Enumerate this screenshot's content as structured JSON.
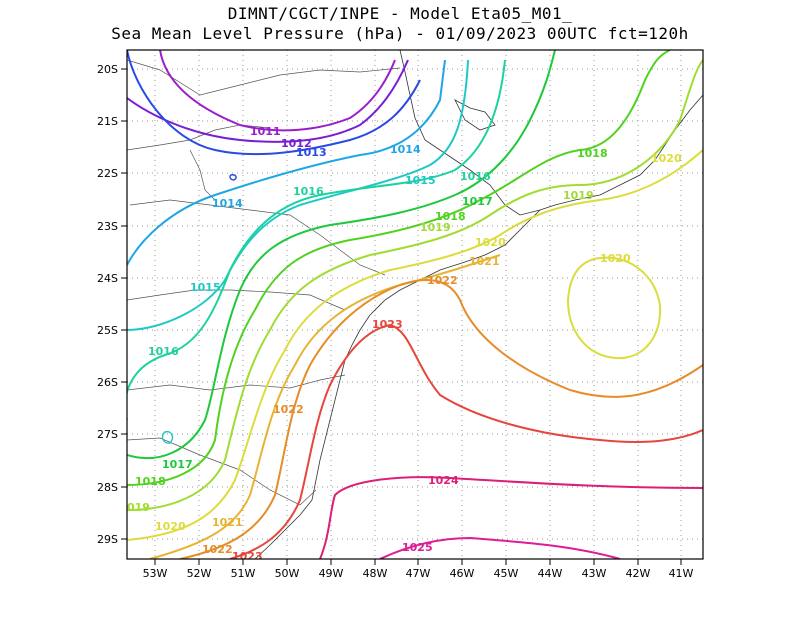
{
  "header": {
    "line1": "DIMNT/CGCT/INPE -  Model Eta05_M01_",
    "line2": "Sea Mean Level Pressure (hPa) - 01/09/2023 00UTC fct=120h"
  },
  "axes": {
    "lat_labels": [
      "20S",
      "21S",
      "22S",
      "23S",
      "24S",
      "25S",
      "26S",
      "27S",
      "28S",
      "29S"
    ],
    "lon_labels": [
      "53W",
      "52W",
      "51W",
      "50W",
      "49W",
      "48W",
      "47W",
      "46W",
      "45W",
      "44W",
      "43W",
      "42W",
      "41W"
    ]
  },
  "isobars": [
    {
      "value": "1011",
      "color": "#9b1ec8"
    },
    {
      "value": "1012",
      "color": "#7a1ed6"
    },
    {
      "value": "1013",
      "color": "#2a4ae6"
    },
    {
      "value": "1014",
      "color": "#1ea6e6"
    },
    {
      "value": "1015",
      "color": "#1ec8c8"
    },
    {
      "value": "1016",
      "color": "#1ed2a0"
    },
    {
      "value": "1017",
      "color": "#1ec83c"
    },
    {
      "value": "1018",
      "color": "#50d21e"
    },
    {
      "value": "1019",
      "color": "#a0dc32"
    },
    {
      "value": "1020",
      "color": "#dcdc3c"
    },
    {
      "value": "1021",
      "color": "#e6b432"
    },
    {
      "value": "1022",
      "color": "#e68c28"
    },
    {
      "value": "1023",
      "color": "#e6463c"
    },
    {
      "value": "1024",
      "color": "#dc1e78"
    },
    {
      "value": "1025",
      "color": "#dc1e96"
    }
  ],
  "labels": [
    {
      "text": "1011",
      "color": "#9b1ec8"
    },
    {
      "text": "1012",
      "color": "#7a1ed6"
    },
    {
      "text": "1013",
      "color": "#2a4ae6"
    },
    {
      "text": "1014",
      "color": "#1ea6e6"
    },
    {
      "text": "1014",
      "color": "#1ea6e6"
    },
    {
      "text": "1015",
      "color": "#1ec8c8"
    },
    {
      "text": "1015",
      "color": "#1ec8c8"
    },
    {
      "text": "1016",
      "color": "#1ed2a0"
    },
    {
      "text": "1016",
      "color": "#1ed2a0"
    },
    {
      "text": "1016",
      "color": "#1ed2a0"
    },
    {
      "text": "1017",
      "color": "#1ec83c"
    },
    {
      "text": "1017",
      "color": "#1ec83c"
    },
    {
      "text": "1018",
      "color": "#50d21e"
    },
    {
      "text": "1018",
      "color": "#50d21e"
    },
    {
      "text": "1018",
      "color": "#50d21e"
    },
    {
      "text": "1019",
      "color": "#a0dc32"
    },
    {
      "text": "1019",
      "color": "#a0dc32"
    },
    {
      "text": "019",
      "color": "#a0dc32"
    },
    {
      "text": "1020",
      "color": "#dcdc3c"
    },
    {
      "text": "1020",
      "color": "#dcdc3c"
    },
    {
      "text": "1020",
      "color": "#dcdc3c"
    },
    {
      "text": "1020",
      "color": "#dcdc3c"
    },
    {
      "text": "1021",
      "color": "#e6b432"
    },
    {
      "text": "1021",
      "color": "#e6b432"
    },
    {
      "text": "1022",
      "color": "#e68c28"
    },
    {
      "text": "1022",
      "color": "#e68c28"
    },
    {
      "text": "1022",
      "color": "#e68c28"
    },
    {
      "text": "1023",
      "color": "#e6463c"
    },
    {
      "text": "1023",
      "color": "#e6463c"
    },
    {
      "text": "1024",
      "color": "#dc1e78"
    },
    {
      "text": "1025",
      "color": "#dc1e96"
    }
  ]
}
